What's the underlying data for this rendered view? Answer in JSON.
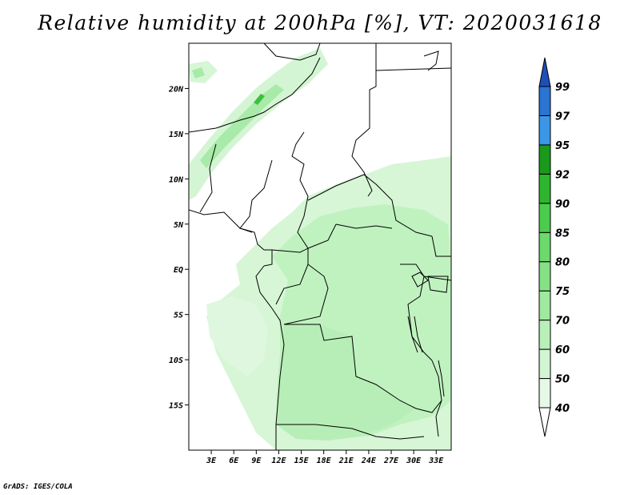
{
  "header": {
    "title": "Relative humidity at 200hPa [%], VT: 2020031618"
  },
  "footer": {
    "credit": "GrADS: IGES/COLA"
  },
  "chart_data": {
    "type": "heatmap",
    "projection": "lat-lon",
    "variable": "Relative humidity at 200hPa",
    "units": "%",
    "valid_time": "2020031618",
    "lon_range": [
      0,
      35
    ],
    "lat_range": [
      -20,
      25
    ],
    "x_ticks": [
      {
        "value": 3,
        "label": "3E"
      },
      {
        "value": 6,
        "label": "6E"
      },
      {
        "value": 9,
        "label": "9E"
      },
      {
        "value": 12,
        "label": "12E"
      },
      {
        "value": 15,
        "label": "15E"
      },
      {
        "value": 18,
        "label": "18E"
      },
      {
        "value": 21,
        "label": "21E"
      },
      {
        "value": 24,
        "label": "24E"
      },
      {
        "value": 27,
        "label": "27E"
      },
      {
        "value": 30,
        "label": "30E"
      },
      {
        "value": 33,
        "label": "33E"
      }
    ],
    "y_ticks": [
      {
        "value": 20,
        "label": "20N"
      },
      {
        "value": 15,
        "label": "15N"
      },
      {
        "value": 10,
        "label": "10N"
      },
      {
        "value": 5,
        "label": "5N"
      },
      {
        "value": 0,
        "label": "EQ"
      },
      {
        "value": -5,
        "label": "5S"
      },
      {
        "value": -10,
        "label": "10S"
      },
      {
        "value": -15,
        "label": "15S"
      }
    ],
    "colorbar": {
      "orientation": "vertical",
      "position": "right",
      "levels": [
        "40",
        "50",
        "60",
        "70",
        "75",
        "80",
        "85",
        "90",
        "92",
        "95",
        "97",
        "99"
      ],
      "colors": [
        "#ffffff",
        "#e6f9e6",
        "#d2f5d2",
        "#b9f0b9",
        "#a0e9a0",
        "#86e186",
        "#6bd96b",
        "#4ccc4c",
        "#2eb52e",
        "#1a9a1a",
        "#3c96e6",
        "#2a74d4",
        "#1e4fb8"
      ]
    },
    "shaded_regions": [
      {
        "name": "central-africa-moist-zone",
        "approx_value": 60,
        "lon_range": [
          3,
          35
        ],
        "lat_range": [
          -20,
          10
        ]
      },
      {
        "name": "sahel-moist-band",
        "approx_value": 70,
        "lon_range": [
          0,
          14
        ],
        "lat_range": [
          8,
          23
        ]
      },
      {
        "name": "sahel-band-core",
        "approx_value": 85,
        "lon": 9,
        "lat": 18.5
      }
    ]
  }
}
